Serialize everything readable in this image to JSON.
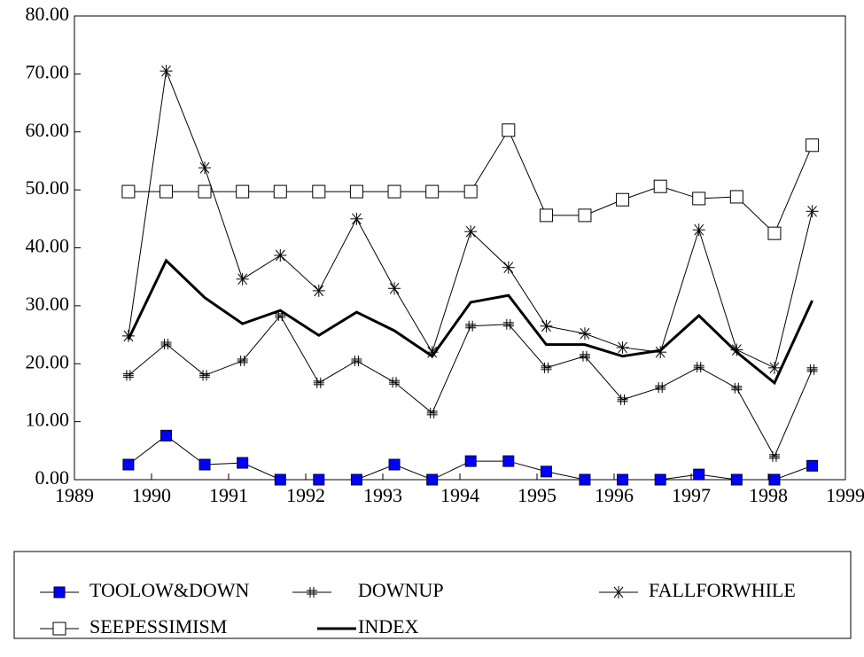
{
  "chart_data": {
    "type": "line",
    "x": [
      1989.7,
      1990.19,
      1990.69,
      1991.18,
      1991.67,
      1992.17,
      1992.66,
      1993.15,
      1993.64,
      1994.14,
      1994.63,
      1995.12,
      1995.62,
      1996.11,
      1996.6,
      1997.1,
      1997.59,
      1998.08,
      1998.57
    ],
    "xlim": [
      1989,
      1999
    ],
    "xticks": [
      1989,
      1990,
      1991,
      1992,
      1993,
      1994,
      1995,
      1996,
      1997,
      1998,
      1999
    ],
    "ylim": [
      0,
      80
    ],
    "yticks": [
      {
        "value": 0,
        "label": "0.00"
      },
      {
        "value": 10,
        "label": "10.00"
      },
      {
        "value": 20,
        "label": "20.00"
      },
      {
        "value": 30,
        "label": "30.00"
      },
      {
        "value": 40,
        "label": "40.00"
      },
      {
        "value": 50,
        "label": "50.00"
      },
      {
        "value": 60,
        "label": "60.00"
      },
      {
        "value": 70,
        "label": "70.00"
      },
      {
        "value": 80,
        "label": "80.00"
      }
    ],
    "grid": false,
    "legend": "bottom",
    "series": [
      {
        "name": "TOOLOW&DOWN",
        "color": "#000000",
        "marker": "square-filled",
        "marker_color": "#0000ff",
        "line_width": 1,
        "values": [
          2.6,
          7.6,
          2.6,
          2.9,
          0,
          0,
          0,
          2.6,
          0,
          3.2,
          3.2,
          1.4,
          0,
          0,
          0,
          0.9,
          0,
          0,
          2.4
        ]
      },
      {
        "name": "DOWNUP",
        "color": "#000000",
        "marker": "hash",
        "marker_color": "#000000",
        "line_width": 1,
        "values": [
          18.0,
          23.4,
          18.0,
          20.5,
          28.3,
          16.7,
          20.5,
          16.8,
          11.5,
          26.5,
          26.8,
          19.3,
          21.3,
          13.8,
          15.9,
          19.4,
          15.8,
          4.0,
          19.0
        ]
      },
      {
        "name": "FALLFORWHILE",
        "color": "#000000",
        "marker": "asterisk",
        "marker_color": "#000000",
        "line_width": 1,
        "values": [
          24.8,
          70.5,
          53.8,
          34.6,
          38.7,
          32.6,
          45.0,
          33.0,
          22.0,
          42.8,
          36.6,
          26.5,
          25.2,
          22.8,
          22.0,
          43.1,
          22.4,
          19.3,
          46.3
        ]
      },
      {
        "name": "SEEPESSIMISM",
        "color": "#000000",
        "marker": "square-open",
        "marker_color": "#000000",
        "line_width": 1,
        "values": [
          49.7,
          49.7,
          49.7,
          49.7,
          49.7,
          49.7,
          49.7,
          49.7,
          49.7,
          49.7,
          60.3,
          45.6,
          45.6,
          48.3,
          50.6,
          48.5,
          48.8,
          42.5,
          57.7
        ]
      },
      {
        "name": "INDEX",
        "color": "#000000",
        "marker": "none",
        "marker_color": "#000000",
        "line_width": 3,
        "values": [
          24.2,
          37.8,
          31.4,
          26.9,
          29.2,
          24.9,
          28.9,
          25.7,
          21.3,
          30.6,
          31.8,
          23.3,
          23.3,
          21.3,
          22.3,
          28.3,
          22.0,
          16.7,
          30.9
        ]
      }
    ]
  }
}
